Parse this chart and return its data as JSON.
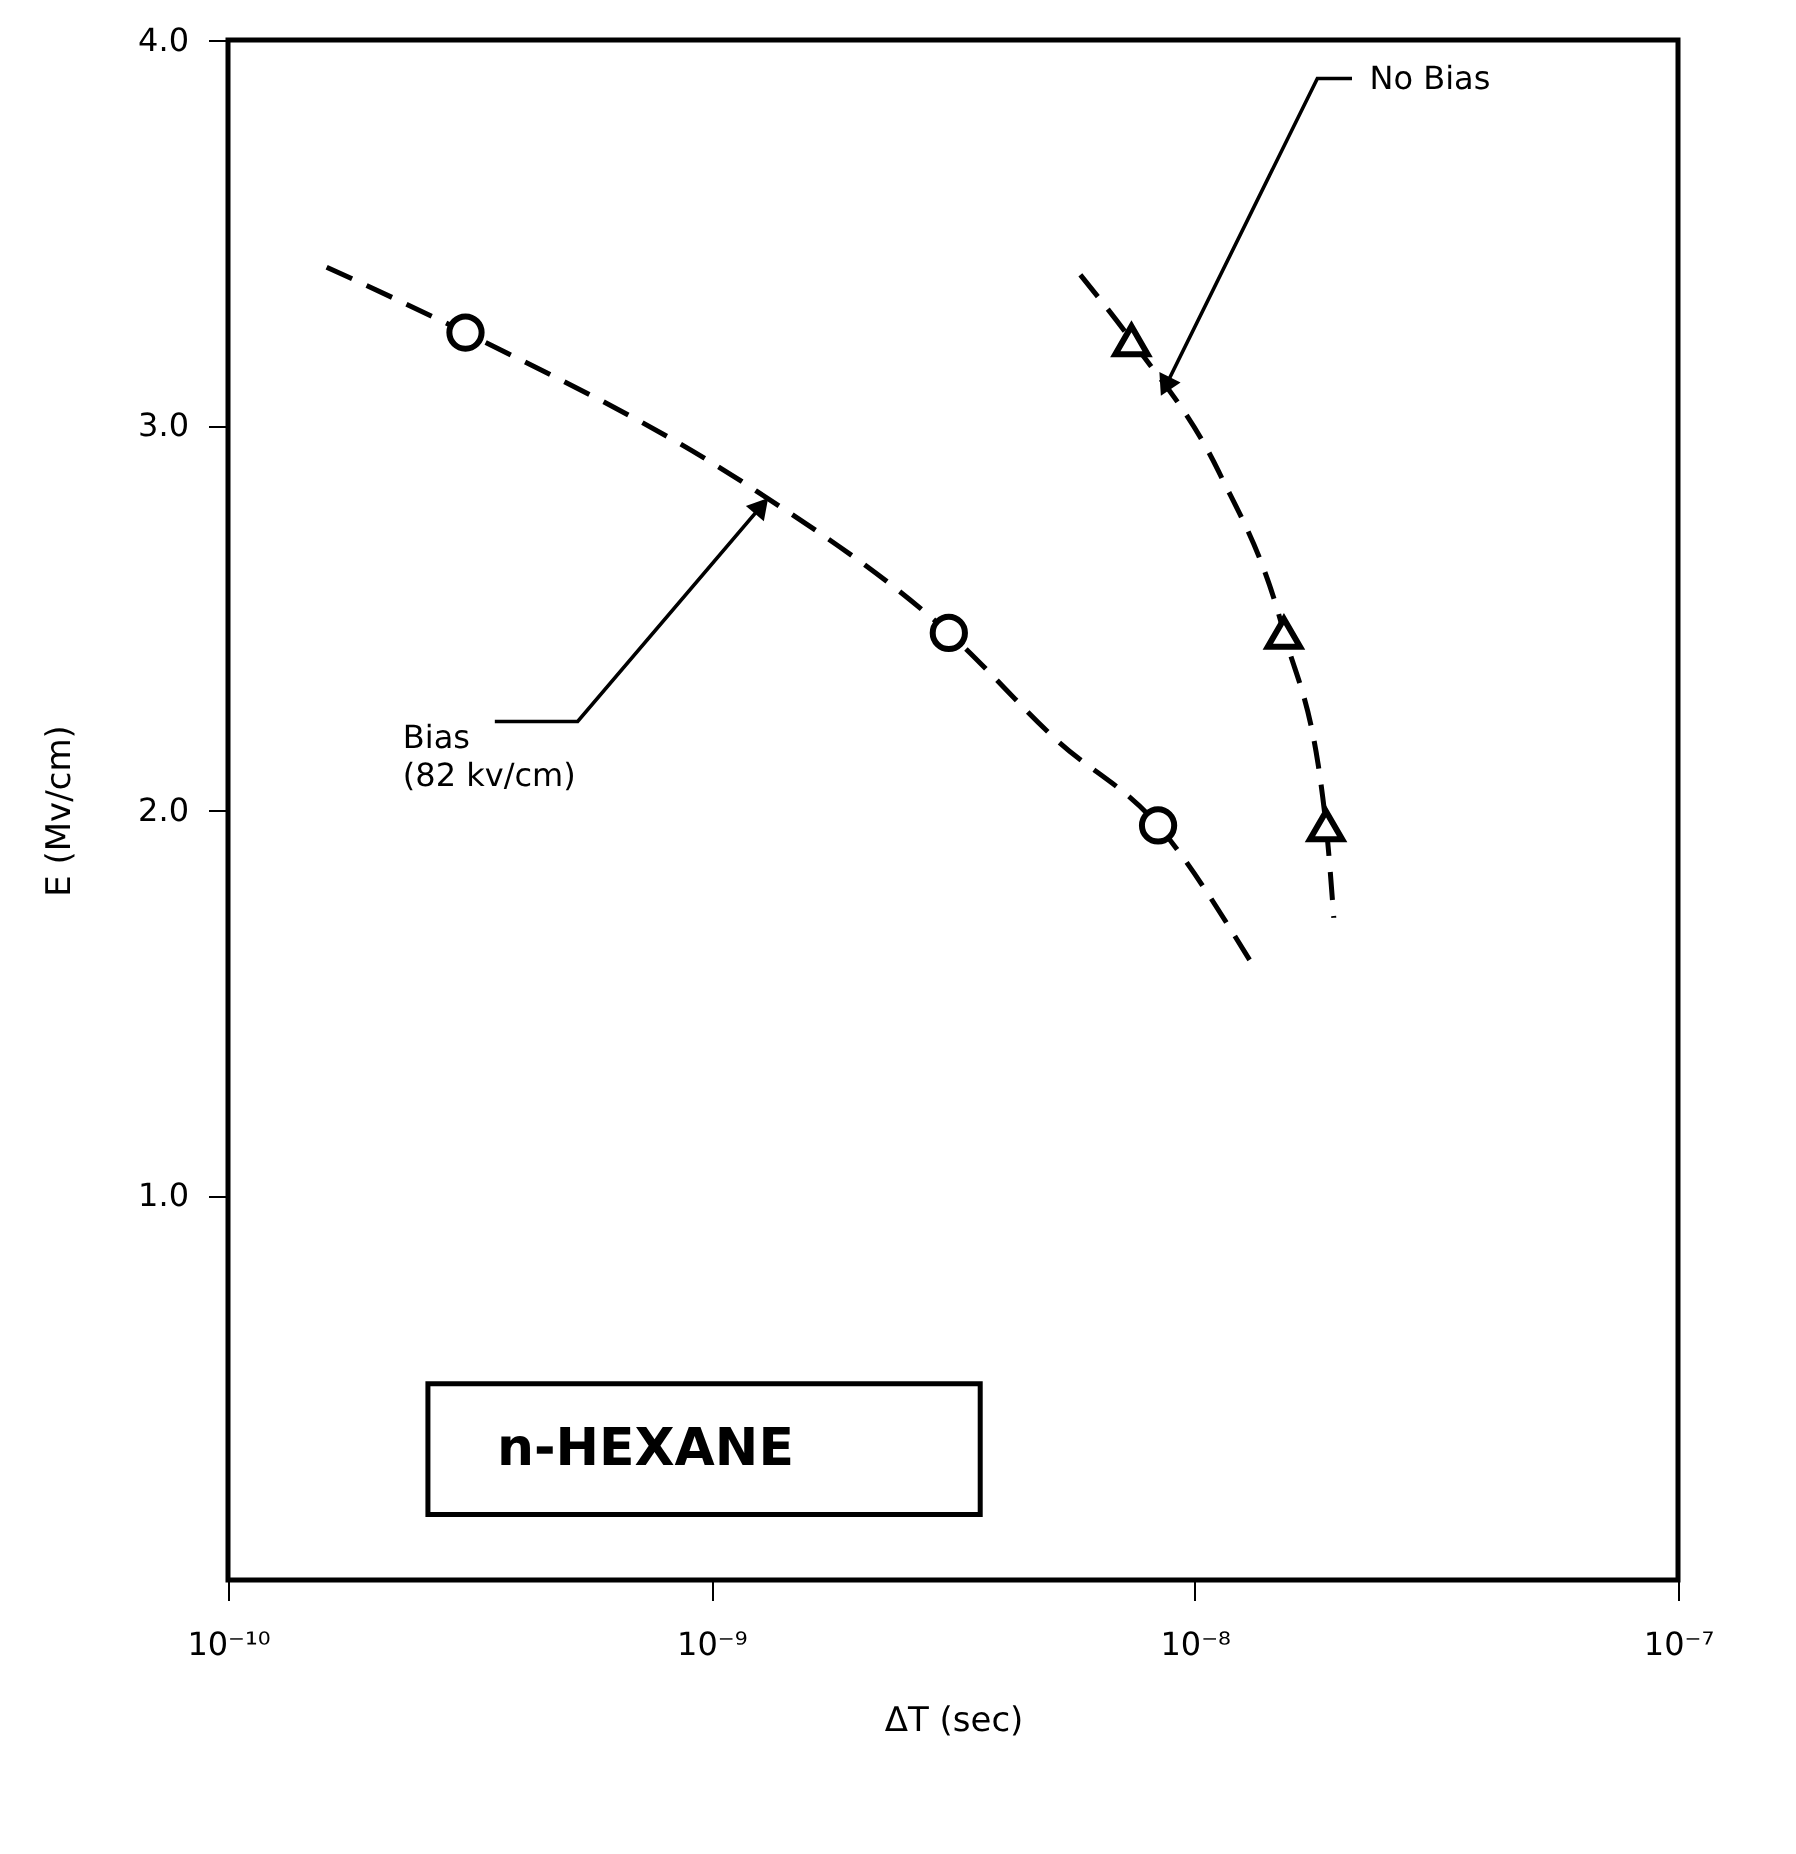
{
  "chart_data": {
    "type": "scatter",
    "xlabel": "ΔT (sec)",
    "ylabel": "E (Mv/cm)",
    "log": "x",
    "grid": false,
    "xlim": [
      1e-10,
      1e-07
    ],
    "xticks": [
      {
        "value": 1e-10,
        "label": "10⁻¹⁰"
      },
      {
        "value": 1e-09,
        "label": "10⁻⁹"
      },
      {
        "value": 1e-08,
        "label": "10⁻⁸"
      },
      {
        "value": 1e-07,
        "label": "10⁻⁷"
      }
    ],
    "ylim": [
      0,
      4
    ],
    "yticks": [
      {
        "value": 1,
        "label": "1.0"
      },
      {
        "value": 2,
        "label": "2.0"
      },
      {
        "value": 3,
        "label": "3.0"
      },
      {
        "value": 4,
        "label": "4.0"
      }
    ],
    "series": [
      {
        "color": "#000000",
        "marker": "circle",
        "x": [
          3.1e-10,
          3.1e-09,
          8.4e-09
        ],
        "values": [
          3.24,
          2.46,
          1.96
        ]
      },
      {
        "color": "#000000",
        "marker": "triangle",
        "x": [
          7.4e-09,
          1.53e-08,
          1.87e-08
        ],
        "values": [
          3.22,
          2.46,
          1.96
        ]
      },
      {
        "type": "line",
        "color": "#000000",
        "line_style": "dashed",
        "x": [
          1.6e-10,
          3.1e-10,
          1.2e-09,
          3.1e-09,
          5.2e-09,
          8.4e-09,
          1.3e-08
        ],
        "values": [
          3.41,
          3.24,
          2.84,
          2.46,
          2.18,
          1.96,
          1.61
        ]
      },
      {
        "type": "line",
        "color": "#000000",
        "line_style": "dashed",
        "x": [
          5.8e-09,
          7.4e-09,
          1.12e-08,
          1.53e-08,
          1.87e-08,
          1.94e-08
        ],
        "values": [
          3.39,
          3.22,
          2.88,
          2.46,
          1.96,
          1.72
        ]
      }
    ],
    "annotations": [
      {
        "text": "Bias\n(82 kv/cm)",
        "x": 1.27e-09,
        "y": 2.79
      },
      {
        "text": "No Bias",
        "x": 8.7e-09,
        "y": 3.1
      },
      "n-HEXANE"
    ]
  }
}
